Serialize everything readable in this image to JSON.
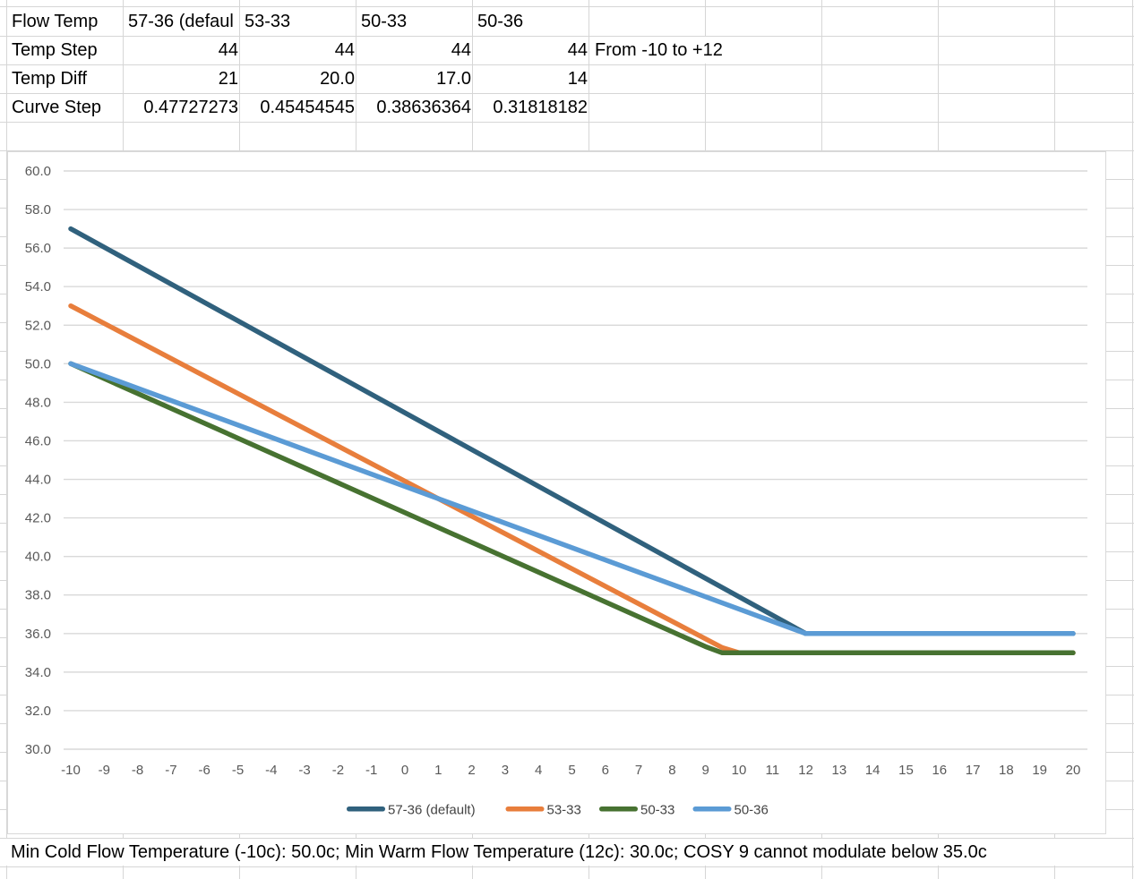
{
  "sheet_table": {
    "row_labels": [
      "Flow Temp",
      "Temp Step",
      "Temp Diff",
      "Curve Step"
    ],
    "rows": [
      {
        "label": "Flow Temp",
        "values": [
          "57-36 (defaul",
          "53-33",
          "50-33",
          "50-36"
        ],
        "note": ""
      },
      {
        "label": "Temp Step",
        "values": [
          "44",
          "44",
          "44",
          "44"
        ],
        "note": "From -10 to +12"
      },
      {
        "label": "Temp Diff",
        "values": [
          "21",
          "20.0",
          "17.0",
          "14"
        ],
        "note": ""
      },
      {
        "label": "Curve Step",
        "values": [
          "0.47727273",
          "0.45454545",
          "0.38636364",
          "0.31818182"
        ],
        "note": ""
      }
    ]
  },
  "bottom_note": "Min Cold Flow Temperature (-10c): 50.0c; Min Warm Flow Temperature (12c): 30.0c; COSY 9 cannot modulate below 35.0c",
  "chart_data": {
    "type": "line",
    "title": "",
    "xlabel": "",
    "ylabel": "",
    "x_ticks": [
      -10,
      -9,
      -8,
      -7,
      -6,
      -5,
      -4,
      -3,
      -2,
      -1,
      0,
      1,
      2,
      3,
      4,
      5,
      6,
      7,
      8,
      9,
      10,
      11,
      12,
      13,
      14,
      15,
      16,
      17,
      18,
      19,
      20
    ],
    "xlim": [
      -10,
      20
    ],
    "ylim": [
      30,
      60
    ],
    "ytick_step": 2,
    "ytick_format_decimals": 1,
    "grid": true,
    "legend_position": "bottom",
    "series": [
      {
        "name": "57-36 (default)",
        "color": "#30617D",
        "points": [
          [
            -10,
            57
          ],
          [
            12,
            36
          ],
          [
            20,
            36
          ]
        ]
      },
      {
        "name": "53-33",
        "color": "#E87E3C",
        "points": [
          [
            -10,
            53
          ],
          [
            9.5,
            35.27
          ],
          [
            10,
            35
          ],
          [
            20,
            35
          ]
        ]
      },
      {
        "name": "50-33",
        "color": "#477231",
        "points": [
          [
            -10,
            50
          ],
          [
            9,
            35.32
          ],
          [
            9.5,
            35
          ],
          [
            20,
            35
          ]
        ]
      },
      {
        "name": "50-36",
        "color": "#5B9BD5",
        "points": [
          [
            -10,
            50
          ],
          [
            12,
            36
          ],
          [
            20,
            36
          ]
        ]
      }
    ]
  },
  "colors": {
    "sheet_gridline": "#D6D6D6",
    "chart_gridline": "#D9D9D9",
    "chart_border": "#D9D9D9",
    "axis_label": "#595959",
    "legend_label": "#444444",
    "cell_text": "#000000"
  }
}
